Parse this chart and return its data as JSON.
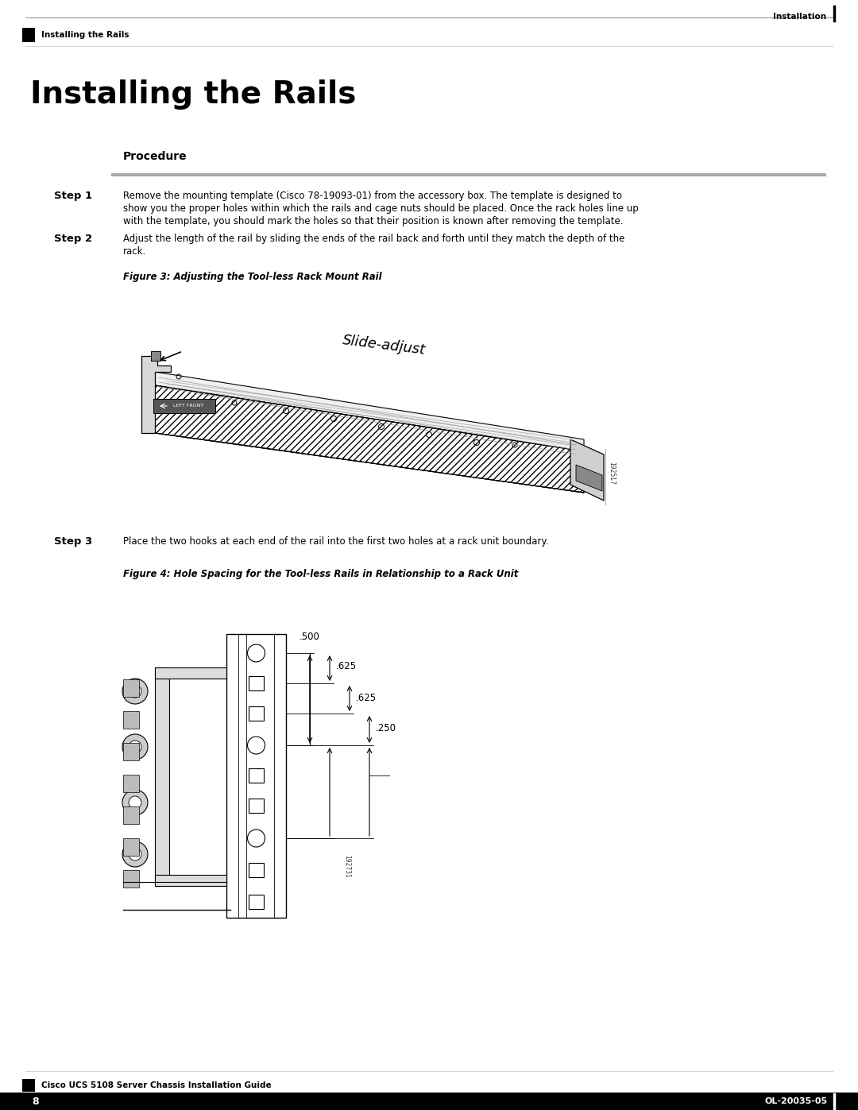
{
  "bg_color": "#ffffff",
  "page_width": 10.8,
  "page_height": 13.97,
  "header_top_text_right": "Installation",
  "header_top_text_left": "Installing the Rails",
  "title": "Installing the Rails",
  "procedure_label": "Procedure",
  "step1_label": "Step 1",
  "step1_text": "Remove the mounting template (Cisco 78-19093-01) from the accessory box. The template is designed to\nshow you the proper holes within which the rails and cage nuts should be placed. Once the rack holes line up\nwith the template, you should mark the holes so that their position is known after removing the template.",
  "step2_label": "Step 2",
  "step2_text": "Adjust the length of the rail by sliding the ends of the rail back and forth until they match the depth of the\nrack.",
  "figure3_caption": "Figure 3: Adjusting the Tool-less Rack Mount Rail",
  "step3_label": "Step 3",
  "step3_text": "Place the two hooks at each end of the rail into the first two holes at a rack unit boundary.",
  "figure4_caption": "Figure 4: Hole Spacing for the Tool-less Rails in Relationship to a Rack Unit",
  "footer_left": "Cisco UCS 5108 Server Chassis Installation Guide",
  "footer_page": "8",
  "footer_right": "OL-20035-05",
  "dim1": ".500",
  "dim2": ".625",
  "dim3": ".625",
  "dim4": ".250"
}
